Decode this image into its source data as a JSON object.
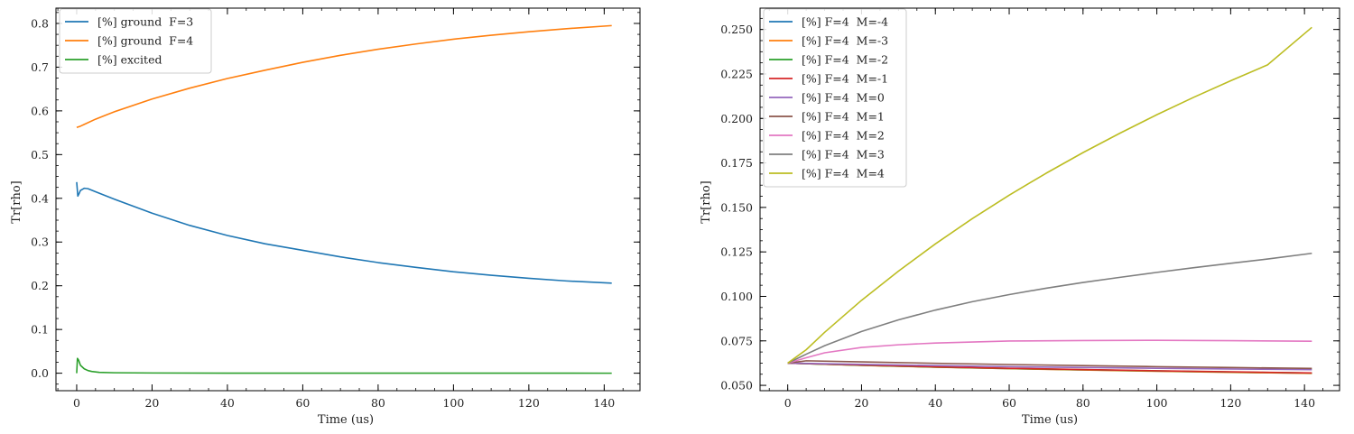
{
  "chart_data": [
    {
      "type": "line",
      "title": "",
      "xlabel": "Time (us)",
      "ylabel": "Tr[rho]",
      "xlim": [
        -5.5,
        149.5
      ],
      "ylim": [
        -0.04,
        0.835
      ],
      "xticks": [
        0,
        20,
        40,
        60,
        80,
        100,
        120,
        140
      ],
      "yticks": [
        0.0,
        0.1,
        0.2,
        0.3,
        0.4,
        0.5,
        0.6,
        0.7,
        0.8
      ],
      "xtick_labels": [
        "0",
        "20",
        "40",
        "60",
        "80",
        "100",
        "120",
        "140"
      ],
      "ytick_labels": [
        "0.0",
        "0.1",
        "0.2",
        "0.3",
        "0.4",
        "0.5",
        "0.6",
        "0.7",
        "0.8"
      ],
      "legend_position": "upper-left",
      "series": [
        {
          "name": "[%] ground  F=3",
          "color": "#1f77b4",
          "x": [
            0,
            0.3,
            0.6,
            1,
            2,
            3,
            5,
            10,
            20,
            30,
            40,
            50,
            60,
            70,
            80,
            90,
            100,
            110,
            120,
            130,
            142
          ],
          "y": [
            0.437,
            0.405,
            0.41,
            0.418,
            0.423,
            0.422,
            0.415,
            0.398,
            0.366,
            0.338,
            0.315,
            0.296,
            0.281,
            0.266,
            0.253,
            0.242,
            0.232,
            0.224,
            0.217,
            0.211,
            0.206
          ]
        },
        {
          "name": "[%] ground  F=4",
          "color": "#ff7f0e",
          "x": [
            0,
            1,
            2,
            5,
            10,
            20,
            30,
            40,
            50,
            60,
            70,
            80,
            90,
            100,
            110,
            120,
            130,
            142
          ],
          "y": [
            0.562,
            0.565,
            0.569,
            0.581,
            0.598,
            0.627,
            0.652,
            0.674,
            0.693,
            0.711,
            0.727,
            0.741,
            0.753,
            0.764,
            0.773,
            0.781,
            0.788,
            0.795
          ]
        },
        {
          "name": "[%] excited",
          "color": "#2ca02c",
          "x": [
            0,
            0.2,
            0.5,
            1,
            2,
            3,
            4,
            6,
            10,
            20,
            40,
            80,
            142
          ],
          "y": [
            0.0,
            0.034,
            0.03,
            0.018,
            0.01,
            0.006,
            0.004,
            0.002,
            0.001,
            0.0005,
            0.0002,
            0.0001,
            0.0
          ]
        }
      ]
    },
    {
      "type": "line",
      "title": "",
      "xlabel": "Time (us)",
      "ylabel": "Tr[rho]",
      "xlim": [
        -7.5,
        149.5
      ],
      "ylim": [
        0.047,
        0.262
      ],
      "xticks": [
        0,
        20,
        40,
        60,
        80,
        100,
        120,
        140
      ],
      "yticks": [
        0.05,
        0.075,
        0.1,
        0.125,
        0.15,
        0.175,
        0.2,
        0.225,
        0.25
      ],
      "xtick_labels": [
        "0",
        "20",
        "40",
        "60",
        "80",
        "100",
        "120",
        "140"
      ],
      "ytick_labels": [
        "0.050",
        "0.075",
        "0.100",
        "0.125",
        "0.150",
        "0.175",
        "0.200",
        "0.225",
        "0.250"
      ],
      "legend_position": "upper-left",
      "series": [
        {
          "name": "[%] F=4  M=-4",
          "color": "#1f77b4",
          "x": [
            0,
            20,
            40,
            60,
            80,
            100,
            120,
            142
          ],
          "y": [
            0.0625,
            0.0613,
            0.0603,
            0.0594,
            0.0587,
            0.058,
            0.0574,
            0.0568
          ]
        },
        {
          "name": "[%] F=4  M=-3",
          "color": "#ff7f0e",
          "x": [
            0,
            20,
            40,
            60,
            80,
            100,
            120,
            142
          ],
          "y": [
            0.0625,
            0.0612,
            0.0602,
            0.0594,
            0.0586,
            0.0579,
            0.0573,
            0.0567
          ]
        },
        {
          "name": "[%] F=4  M=-2",
          "color": "#2ca02c",
          "x": [
            0,
            20,
            40,
            60,
            80,
            100,
            120,
            142
          ],
          "y": [
            0.0625,
            0.0613,
            0.0603,
            0.0595,
            0.0588,
            0.0581,
            0.0575,
            0.0569
          ]
        },
        {
          "name": "[%] F=4  M=-1",
          "color": "#d62728",
          "x": [
            0,
            20,
            40,
            60,
            80,
            100,
            120,
            142
          ],
          "y": [
            0.0625,
            0.0614,
            0.0604,
            0.0596,
            0.0589,
            0.0582,
            0.0576,
            0.057
          ]
        },
        {
          "name": "[%] F=4  M=0",
          "color": "#9467bd",
          "x": [
            0,
            20,
            40,
            60,
            80,
            100,
            120,
            142
          ],
          "y": [
            0.0625,
            0.0618,
            0.0611,
            0.0605,
            0.06,
            0.0596,
            0.0592,
            0.0588
          ]
        },
        {
          "name": "[%] F=4  M=1",
          "color": "#8c564b",
          "x": [
            0,
            5,
            20,
            40,
            60,
            80,
            100,
            120,
            142
          ],
          "y": [
            0.0625,
            0.0638,
            0.0632,
            0.0624,
            0.0617,
            0.0611,
            0.0605,
            0.06,
            0.0595
          ]
        },
        {
          "name": "[%] F=4  M=2",
          "color": "#e377c2",
          "x": [
            0,
            5,
            10,
            20,
            30,
            40,
            60,
            80,
            100,
            120,
            142
          ],
          "y": [
            0.0625,
            0.0655,
            0.0683,
            0.0713,
            0.0728,
            0.0738,
            0.0749,
            0.0752,
            0.0753,
            0.0751,
            0.0748
          ]
        },
        {
          "name": "[%] F=4  M=3",
          "color": "#7f7f7f",
          "x": [
            0,
            5,
            10,
            20,
            30,
            40,
            50,
            60,
            70,
            80,
            90,
            100,
            110,
            120,
            130,
            142
          ],
          "y": [
            0.0625,
            0.0675,
            0.0723,
            0.0803,
            0.0868,
            0.0923,
            0.097,
            0.101,
            0.1046,
            0.1078,
            0.1107,
            0.1135,
            0.1161,
            0.1186,
            0.121,
            0.1242
          ]
        },
        {
          "name": "[%] F=4  M=4",
          "color": "#bcbd22",
          "x": [
            0,
            5,
            10,
            20,
            30,
            40,
            50,
            60,
            70,
            80,
            90,
            100,
            110,
            120,
            130,
            142
          ],
          "y": [
            0.0625,
            0.07,
            0.0798,
            0.0978,
            0.1142,
            0.1295,
            0.1437,
            0.1569,
            0.1692,
            0.1808,
            0.1917,
            0.2021,
            0.2119,
            0.2212,
            0.2301,
            0.2512
          ]
        }
      ]
    }
  ]
}
